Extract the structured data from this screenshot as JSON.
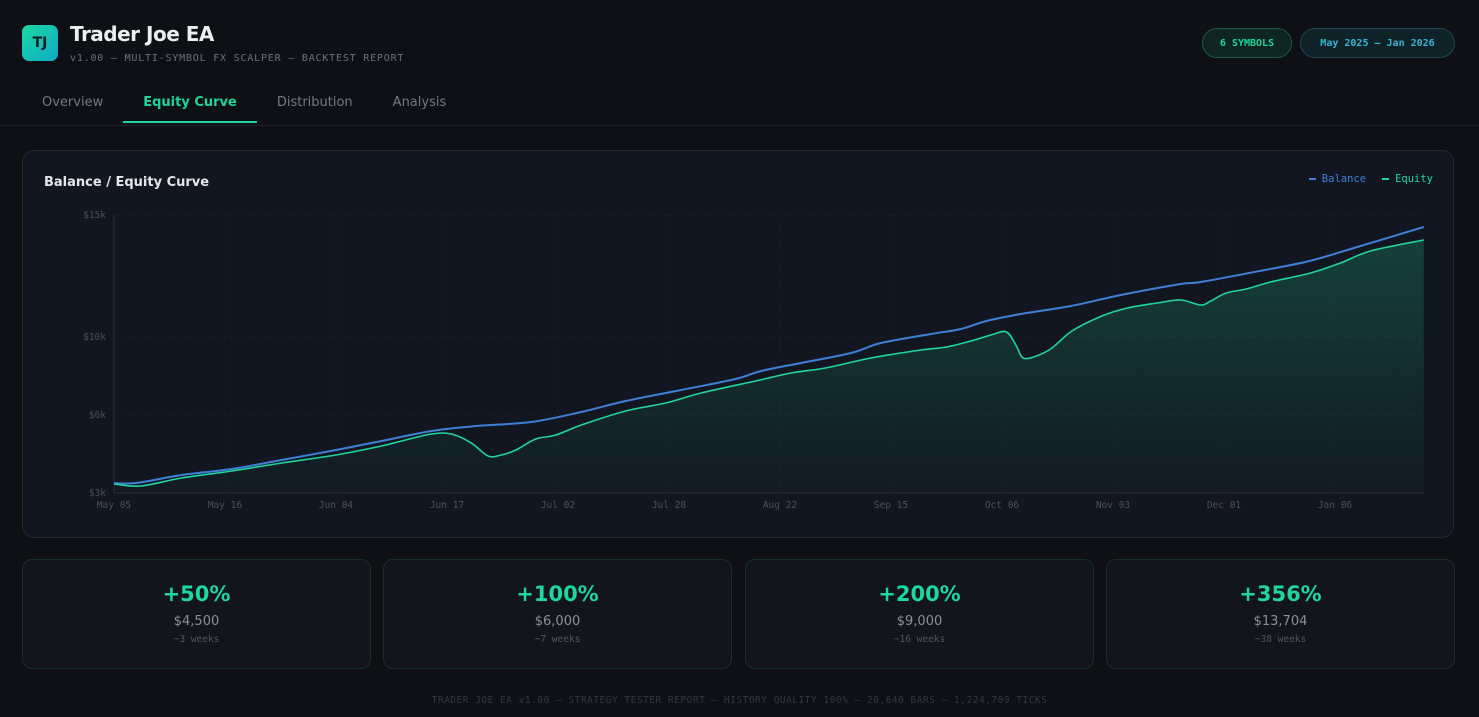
{
  "header": {
    "logo": "TJ",
    "title": "Trader Joe EA",
    "subtitle": "v1.00 — MULTI-SYMBOL FX SCALPER — BACKTEST REPORT",
    "badges": [
      "6 SYMBOLS",
      "May 2025 — Jan 2026"
    ]
  },
  "tabs": [
    {
      "label": "Overview"
    },
    {
      "label": "Equity Curve",
      "active": true
    },
    {
      "label": "Distribution"
    },
    {
      "label": "Analysis"
    }
  ],
  "colors": {
    "accent": "#1fd69d",
    "balance": "#3f7fd8",
    "equity": "#1fd69d"
  },
  "chart_data": {
    "type": "line",
    "title": "Balance / Equity Curve",
    "legend": [
      "Balance",
      "Equity"
    ],
    "legend_position": "top-right",
    "x_ticks": [
      "May 05",
      "May 16",
      "Jun 04",
      "Jun 17",
      "Jul 02",
      "Jul 28",
      "Aug 22",
      "Sep 15",
      "Oct 06",
      "Nov 03",
      "Dec 01",
      "Jan 06"
    ],
    "y_ticks": [
      {
        "value": 3000,
        "label": "$3k"
      },
      {
        "value": 6000,
        "label": "$6k"
      },
      {
        "value": 10000,
        "label": "$10k"
      },
      {
        "value": 15000,
        "label": "$15k"
      }
    ],
    "ylim": [
      3000,
      15000
    ],
    "x_unit": "tick index",
    "series": [
      {
        "name": "Balance",
        "points": [
          [
            0,
            3385
          ],
          [
            0.2,
            3385
          ],
          [
            0.61,
            3692
          ],
          [
            1.06,
            3923
          ],
          [
            1.51,
            4269
          ],
          [
            2,
            4654
          ],
          [
            2.41,
            5000
          ],
          [
            2.86,
            5385
          ],
          [
            3.26,
            5577
          ],
          [
            3.76,
            5731
          ],
          [
            4.21,
            6154
          ],
          [
            4.61,
            6718
          ],
          [
            5.11,
            7282
          ],
          [
            5.6,
            7846
          ],
          [
            5.83,
            8256
          ],
          [
            6.19,
            8667
          ],
          [
            6.64,
            9179
          ],
          [
            6.91,
            9692
          ],
          [
            7.36,
            10123
          ],
          [
            7.63,
            10328
          ],
          [
            7.86,
            10656
          ],
          [
            8.17,
            10943
          ],
          [
            8.62,
            11270
          ],
          [
            9.07,
            11721
          ],
          [
            9.61,
            12172
          ],
          [
            9.79,
            12254
          ],
          [
            10.32,
            12705
          ],
          [
            10.77,
            13115
          ],
          [
            11.23,
            13730
          ],
          [
            11.8,
            14508
          ]
        ]
      },
      {
        "name": "Equity",
        "points": [
          [
            0,
            3346
          ],
          [
            0.24,
            3269
          ],
          [
            0.61,
            3577
          ],
          [
            1.06,
            3846
          ],
          [
            1.51,
            4154
          ],
          [
            2,
            4462
          ],
          [
            2.41,
            4808
          ],
          [
            2.59,
            5000
          ],
          [
            2.86,
            5269
          ],
          [
            3.04,
            5269
          ],
          [
            3.22,
            4923
          ],
          [
            3.37,
            4423
          ],
          [
            3.49,
            4462
          ],
          [
            3.62,
            4654
          ],
          [
            3.8,
            5077
          ],
          [
            3.98,
            5231
          ],
          [
            4.21,
            5615
          ],
          [
            4.61,
            6205
          ],
          [
            4.97,
            6615
          ],
          [
            5.29,
            7128
          ],
          [
            5.78,
            7744
          ],
          [
            6.1,
            8154
          ],
          [
            6.41,
            8410
          ],
          [
            6.82,
            8923
          ],
          [
            7.27,
            9333
          ],
          [
            7.5,
            9487
          ],
          [
            7.72,
            9795
          ],
          [
            7.9,
            10082
          ],
          [
            8.04,
            10205
          ],
          [
            8.13,
            9538
          ],
          [
            8.19,
            8923
          ],
          [
            8.31,
            9026
          ],
          [
            8.45,
            9436
          ],
          [
            8.63,
            10246
          ],
          [
            8.9,
            10861
          ],
          [
            9.13,
            11188
          ],
          [
            9.4,
            11393
          ],
          [
            9.61,
            11516
          ],
          [
            9.79,
            11311
          ],
          [
            9.88,
            11475
          ],
          [
            10.02,
            11803
          ],
          [
            10.2,
            11967
          ],
          [
            10.42,
            12254
          ],
          [
            10.78,
            12623
          ],
          [
            11.05,
            13033
          ],
          [
            11.32,
            13525
          ],
          [
            11.8,
            13975
          ]
        ]
      }
    ]
  },
  "milestones": [
    {
      "pct": "+50%",
      "amount": "$4,500",
      "time": "~3 weeks"
    },
    {
      "pct": "+100%",
      "amount": "$6,000",
      "time": "~7 weeks"
    },
    {
      "pct": "+200%",
      "amount": "$9,000",
      "time": "~16 weeks"
    },
    {
      "pct": "+356%",
      "amount": "$13,704",
      "time": "~38 weeks"
    }
  ],
  "footer": "TRADER JOE EA v1.00 — STRATEGY TESTER REPORT — HISTORY QUALITY 100% — 20,640 BARS — 1,224,709 TICKS"
}
